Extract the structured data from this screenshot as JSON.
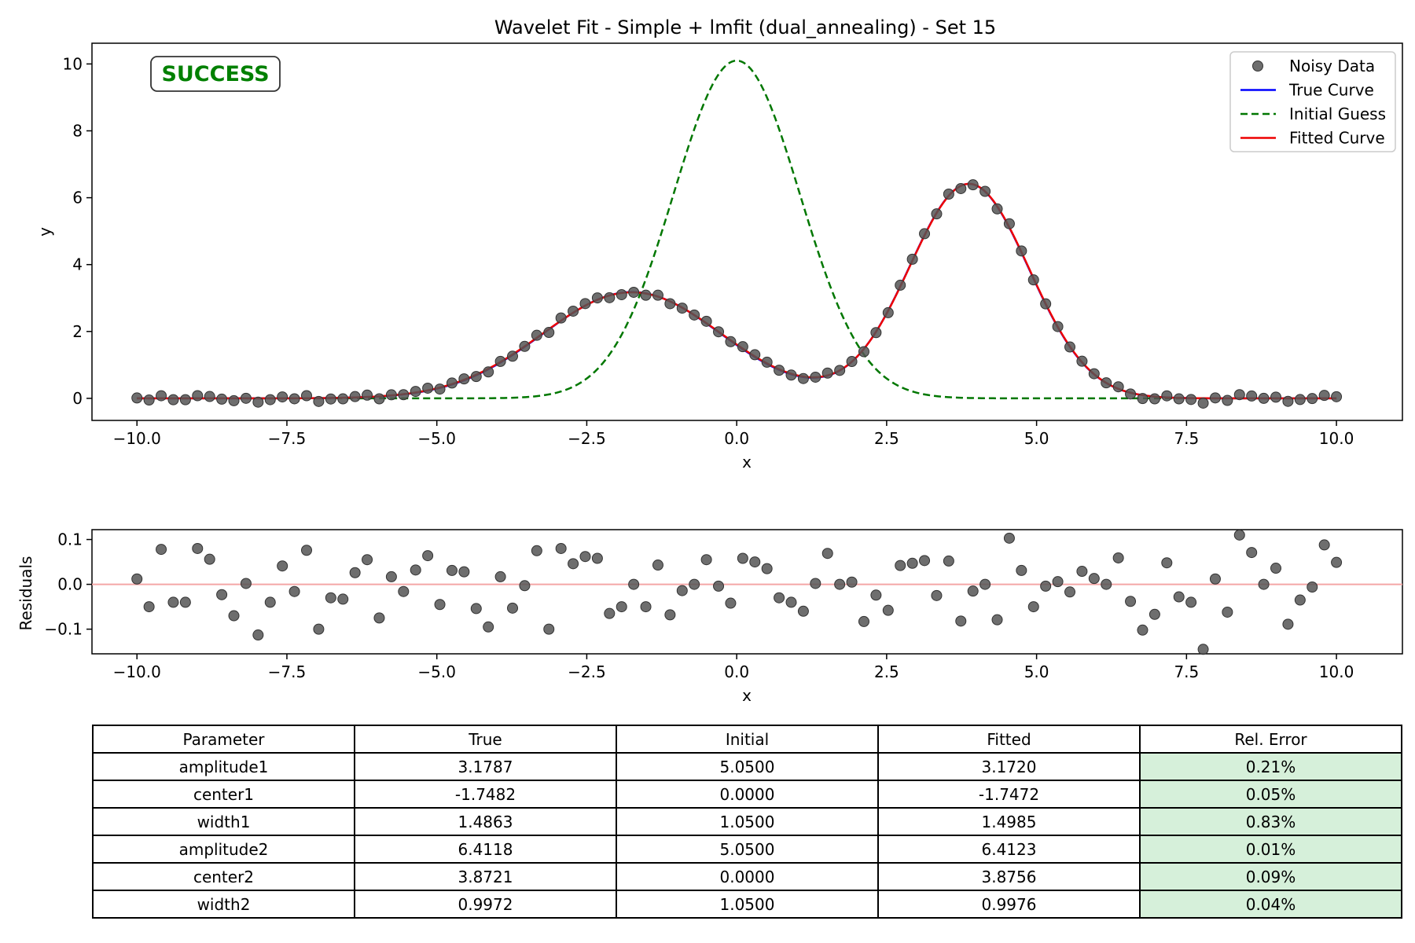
{
  "chart_data": [
    {
      "type": "line",
      "title": "Wavelet Fit - Simple + lmfit (dual_annealing) - Set 15",
      "xlabel": "x",
      "ylabel": "y",
      "xlim": [
        -10.75,
        11.1
      ],
      "ylim": [
        -0.66,
        10.62
      ],
      "xticks": [
        -10.0,
        -7.5,
        -5.0,
        -2.5,
        0.0,
        2.5,
        5.0,
        7.5,
        10.0
      ],
      "xtick_labels": [
        "−10.0",
        "−7.5",
        "−5.0",
        "−2.5",
        "0.0",
        "2.5",
        "5.0",
        "7.5",
        "10.0"
      ],
      "yticks": [
        0,
        2,
        4,
        6,
        8,
        10
      ],
      "ytick_labels": [
        "0",
        "2",
        "4",
        "6",
        "8",
        "10"
      ],
      "status_text": "SUCCESS",
      "status_color": "#008000",
      "legend_position": "top-right",
      "legend": [
        {
          "label": "Noisy Data",
          "kind": "marker",
          "color": "#555555"
        },
        {
          "label": "True Curve",
          "kind": "line",
          "color": "#0000ff"
        },
        {
          "label": "Initial Guess",
          "kind": "dashed",
          "color": "#007700"
        },
        {
          "label": "Fitted Curve",
          "kind": "line",
          "color": "#ee0000"
        }
      ],
      "models": {
        "true": {
          "amplitude1": 3.1787,
          "center1": -1.7482,
          "width1": 1.4863,
          "amplitude2": 6.4118,
          "center2": 3.8721,
          "width2": 0.9972
        },
        "initial": {
          "amplitude1": 5.05,
          "center1": 0.0,
          "width1": 1.05,
          "amplitude2": 5.05,
          "center2": 0.0,
          "width2": 1.05
        },
        "fitted": {
          "amplitude1": 3.172,
          "center1": -1.7472,
          "width1": 1.4985,
          "amplitude2": 6.4123,
          "center2": 3.8756,
          "width2": 0.9976
        }
      },
      "points": {
        "x_start": -10.0,
        "x_step": 0.20202,
        "count": 100,
        "residuals": [
          0.012,
          -0.05,
          0.078,
          -0.04,
          -0.04,
          0.08,
          0.056,
          -0.023,
          -0.07,
          0.002,
          -0.113,
          -0.04,
          0.041,
          -0.016,
          0.076,
          -0.1,
          -0.03,
          -0.033,
          0.026,
          0.055,
          -0.075,
          0.017,
          -0.016,
          0.032,
          0.064,
          -0.045,
          0.031,
          0.028,
          -0.054,
          -0.095,
          0.017,
          -0.053,
          -0.003,
          0.075,
          -0.1,
          0.08,
          0.046,
          0.062,
          0.058,
          -0.065,
          -0.05,
          0.0,
          -0.05,
          0.043,
          -0.068,
          -0.014,
          0.0,
          0.055,
          -0.004,
          -0.042,
          0.058,
          0.05,
          0.035,
          -0.03,
          -0.04,
          -0.06,
          0.002,
          0.069,
          0.0,
          0.005,
          -0.083,
          -0.024,
          -0.058,
          0.042,
          0.047,
          0.053,
          -0.025,
          0.052,
          -0.082,
          -0.015,
          0.0,
          -0.079,
          0.103,
          0.031,
          -0.05,
          -0.004,
          0.006,
          -0.017,
          0.029,
          0.013,
          0.0,
          0.059,
          -0.038,
          -0.102,
          -0.067,
          0.048,
          -0.028,
          -0.04,
          -0.145,
          0.012,
          -0.062,
          0.11,
          0.071,
          0.0,
          0.036,
          -0.089,
          -0.035,
          -0.006,
          0.088,
          0.049
        ]
      }
    },
    {
      "type": "scatter",
      "xlabel": "x",
      "ylabel": "Residuals",
      "xlim": [
        -10.75,
        11.1
      ],
      "ylim": [
        -0.155,
        0.122
      ],
      "xticks": [
        -10.0,
        -7.5,
        -5.0,
        -2.5,
        0.0,
        2.5,
        5.0,
        7.5,
        10.0
      ],
      "xtick_labels": [
        "−10.0",
        "−7.5",
        "−5.0",
        "−2.5",
        "0.0",
        "2.5",
        "5.0",
        "7.5",
        "10.0"
      ],
      "yticks": [
        0.1,
        0.0,
        -0.1
      ],
      "ytick_labels": [
        "0.1",
        "0.0",
        "−0.1"
      ],
      "zero_line_color": "#f4a6a6"
    },
    {
      "type": "table",
      "headers": [
        "Parameter",
        "True",
        "Initial",
        "Fitted",
        "Rel. Error"
      ],
      "rows": [
        [
          "amplitude1",
          "3.1787",
          "5.0500",
          "3.1720",
          "0.21%"
        ],
        [
          "center1",
          "-1.7482",
          "0.0000",
          "-1.7472",
          "0.05%"
        ],
        [
          "width1",
          "1.4863",
          "1.0500",
          "1.4985",
          "0.83%"
        ],
        [
          "amplitude2",
          "6.4118",
          "5.0500",
          "6.4123",
          "0.01%"
        ],
        [
          "center2",
          "3.8721",
          "0.0000",
          "3.8756",
          "0.09%"
        ],
        [
          "width2",
          "0.9972",
          "1.0500",
          "0.9976",
          "0.04%"
        ]
      ],
      "error_cell_color": "#d6f0da"
    }
  ]
}
